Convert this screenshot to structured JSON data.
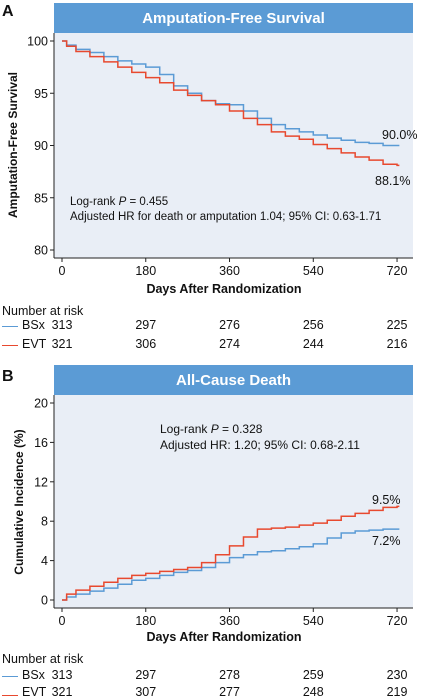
{
  "colors": {
    "bsx": "#5b9bd5",
    "evt": "#e8492f",
    "title_bar": "#5b9bd5",
    "plot_bg": "#e9eef6"
  },
  "panelA": {
    "letter": "A",
    "title": "Amputation-Free Survival",
    "annot_line1_prefix": "Log-rank ",
    "annot_p": "P",
    "annot_line1_suffix": " = 0.455",
    "annot_line2": "Adjusted HR for death or amputation 1.04; 95% CI: 0.63-1.71",
    "end_label_bsx": "90.0%",
    "end_label_evt": "88.1%",
    "risk_title": "Number at risk",
    "risk": {
      "bsx": {
        "label": "BSx",
        "values": [
          "313",
          "297",
          "276",
          "256",
          "225"
        ]
      },
      "evt": {
        "label": "EVT",
        "values": [
          "321",
          "306",
          "274",
          "244",
          "216"
        ]
      }
    }
  },
  "panelB": {
    "letter": "B",
    "title": "All-Cause Death",
    "annot_line1_prefix": "Log-rank ",
    "annot_p": "P",
    "annot_line1_suffix": " = 0.328",
    "annot_line2": "Adjusted HR: 1.20; 95% CI: 0.68-2.11",
    "end_label_bsx": "7.2%",
    "end_label_evt": "9.5%",
    "risk_title": "Number at risk",
    "risk": {
      "bsx": {
        "label": "BSx",
        "values": [
          "313",
          "297",
          "278",
          "259",
          "230"
        ]
      },
      "evt": {
        "label": "EVT",
        "values": [
          "321",
          "307",
          "277",
          "248",
          "219"
        ]
      }
    }
  },
  "chart_data": [
    {
      "type": "line",
      "title": "Amputation-Free Survival",
      "xlabel": "Days After Randomization",
      "ylabel": "Amputation-Free Survival",
      "xlim": [
        0,
        750
      ],
      "ylim": [
        80,
        100
      ],
      "xticks": [
        0,
        180,
        360,
        540,
        720
      ],
      "yticks": [
        80,
        85,
        90,
        95,
        100
      ],
      "step": true,
      "series": [
        {
          "name": "BSx",
          "x": [
            0,
            10,
            30,
            60,
            90,
            120,
            150,
            180,
            210,
            240,
            270,
            300,
            330,
            360,
            390,
            420,
            450,
            480,
            510,
            540,
            570,
            600,
            630,
            660,
            690,
            720,
            725
          ],
          "y": [
            100,
            99.6,
            99.2,
            98.9,
            98.5,
            98.1,
            97.8,
            97.5,
            96.8,
            95.7,
            95.0,
            94.3,
            94.0,
            93.9,
            93.3,
            92.6,
            92.0,
            91.6,
            91.3,
            91.0,
            90.7,
            90.5,
            90.3,
            90.2,
            90.0,
            90.0,
            90.0
          ]
        },
        {
          "name": "EVT",
          "x": [
            0,
            10,
            30,
            60,
            90,
            120,
            150,
            180,
            210,
            240,
            270,
            300,
            330,
            360,
            390,
            420,
            450,
            480,
            510,
            540,
            570,
            600,
            630,
            660,
            690,
            720,
            725
          ],
          "y": [
            100,
            99.5,
            99.0,
            98.5,
            98.0,
            97.5,
            97.0,
            96.5,
            96.0,
            95.3,
            94.8,
            94.3,
            93.9,
            93.3,
            92.6,
            92.0,
            91.3,
            90.9,
            90.6,
            90.1,
            89.7,
            89.3,
            88.9,
            88.6,
            88.2,
            88.1,
            88.1
          ]
        }
      ]
    },
    {
      "type": "line",
      "title": "All-Cause Death",
      "xlabel": "Days After Randomization",
      "ylabel": "Cumulative Incidence (%)",
      "xlim": [
        0,
        750
      ],
      "ylim": [
        0,
        20
      ],
      "xticks": [
        0,
        180,
        360,
        540,
        720
      ],
      "yticks": [
        0,
        4,
        8,
        12,
        16,
        20
      ],
      "step": true,
      "series": [
        {
          "name": "BSx",
          "x": [
            0,
            10,
            30,
            60,
            90,
            120,
            150,
            180,
            210,
            240,
            270,
            300,
            330,
            360,
            390,
            420,
            450,
            480,
            510,
            540,
            570,
            600,
            630,
            660,
            690,
            720,
            725
          ],
          "y": [
            0,
            0.3,
            0.6,
            0.9,
            1.2,
            1.6,
            2.0,
            2.2,
            2.5,
            2.8,
            3.0,
            3.3,
            3.8,
            4.3,
            4.6,
            4.9,
            5.0,
            5.2,
            5.4,
            5.7,
            6.3,
            6.8,
            7.0,
            7.1,
            7.2,
            7.2,
            7.2
          ]
        },
        {
          "name": "EVT",
          "x": [
            0,
            10,
            30,
            60,
            90,
            120,
            150,
            180,
            210,
            240,
            270,
            300,
            330,
            360,
            390,
            420,
            450,
            480,
            510,
            540,
            570,
            600,
            630,
            660,
            690,
            720,
            725
          ],
          "y": [
            0,
            0.6,
            1.0,
            1.4,
            1.8,
            2.2,
            2.5,
            2.7,
            2.9,
            3.1,
            3.3,
            3.8,
            4.6,
            5.5,
            6.4,
            7.2,
            7.3,
            7.4,
            7.6,
            7.8,
            8.1,
            8.5,
            8.8,
            9.1,
            9.4,
            9.5,
            9.5
          ]
        }
      ]
    }
  ]
}
